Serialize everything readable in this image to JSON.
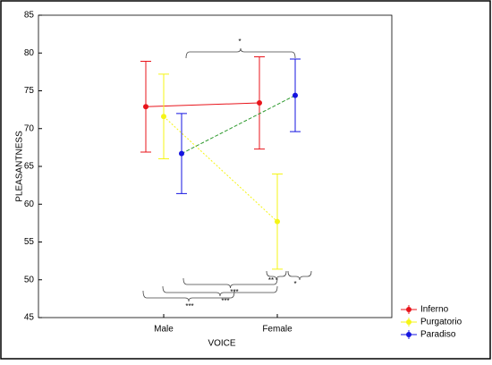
{
  "chart_data": {
    "type": "errorbar-line",
    "xlabel": "VOICE",
    "ylabel": "PLEASANTNESS",
    "categories": [
      "Male",
      "Female"
    ],
    "series": [
      {
        "name": "Inferno",
        "color": "#e8141b",
        "line_color": "#e8141b",
        "line_style": "solid",
        "values": [
          72.9,
          73.4
        ],
        "errors": [
          6.0,
          6.1
        ]
      },
      {
        "name": "Purgatorio",
        "color": "#f5f516",
        "line_color": "#f5f516",
        "line_style": "dotted",
        "values": [
          71.6,
          57.7
        ],
        "errors": [
          5.6,
          6.3
        ]
      },
      {
        "name": "Paradiso",
        "color": "#1414e0",
        "line_color": "#2e9a2e",
        "line_style": "dashed",
        "values": [
          66.7,
          74.4
        ],
        "errors": [
          5.3,
          4.8
        ]
      }
    ],
    "ylim": [
      45,
      85
    ],
    "yticks": [
      45,
      50,
      55,
      60,
      65,
      70,
      75,
      80,
      85
    ],
    "legend": "right",
    "annotations": [
      "*",
      "**",
      "*",
      "***",
      "***",
      "***"
    ]
  }
}
